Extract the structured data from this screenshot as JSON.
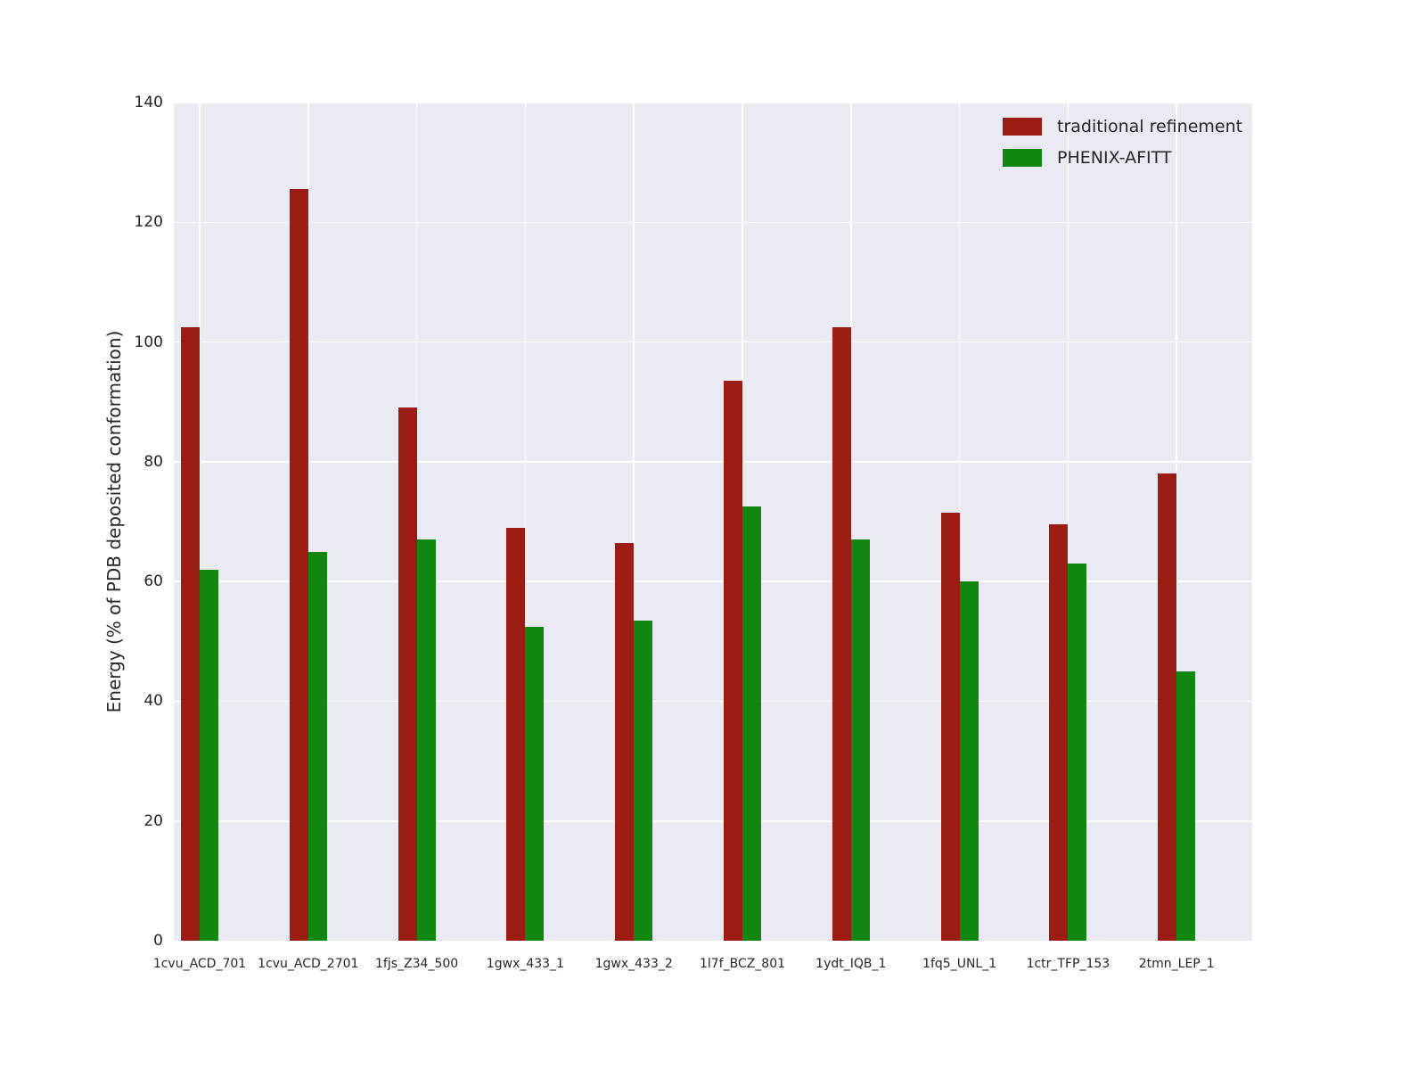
{
  "chart_data": {
    "type": "bar",
    "title": "",
    "xlabel": "",
    "ylabel": "Energy (% of PDB deposited conformation)",
    "ylim": [
      0,
      140
    ],
    "yticks": [
      0,
      20,
      40,
      60,
      80,
      100,
      120,
      140
    ],
    "grid": true,
    "legend_position": "upper right",
    "plot_background": "#eaeaf2",
    "gridline_color": "#ffffff",
    "categories": [
      "1cvu_ACD_701",
      "1cvu_ACD_2701",
      "1fjs_Z34_500",
      "1gwx_433_1",
      "1gwx_433_2",
      "1l7f_BCZ_801",
      "1ydt_IQB_1",
      "1fq5_UNL_1",
      "1ctr_TFP_153",
      "2tmn_LEP_1"
    ],
    "series": [
      {
        "name": "traditional refinement",
        "color": "#9b1c12",
        "values": [
          102.5,
          125.5,
          89,
          69,
          66.5,
          93.5,
          102.5,
          71.5,
          69.5,
          78
        ]
      },
      {
        "name": "PHENIX-AFITT",
        "color": "#118611",
        "values": [
          62,
          65,
          67,
          52.5,
          53.5,
          72.5,
          67,
          60,
          63,
          45
        ]
      }
    ]
  }
}
